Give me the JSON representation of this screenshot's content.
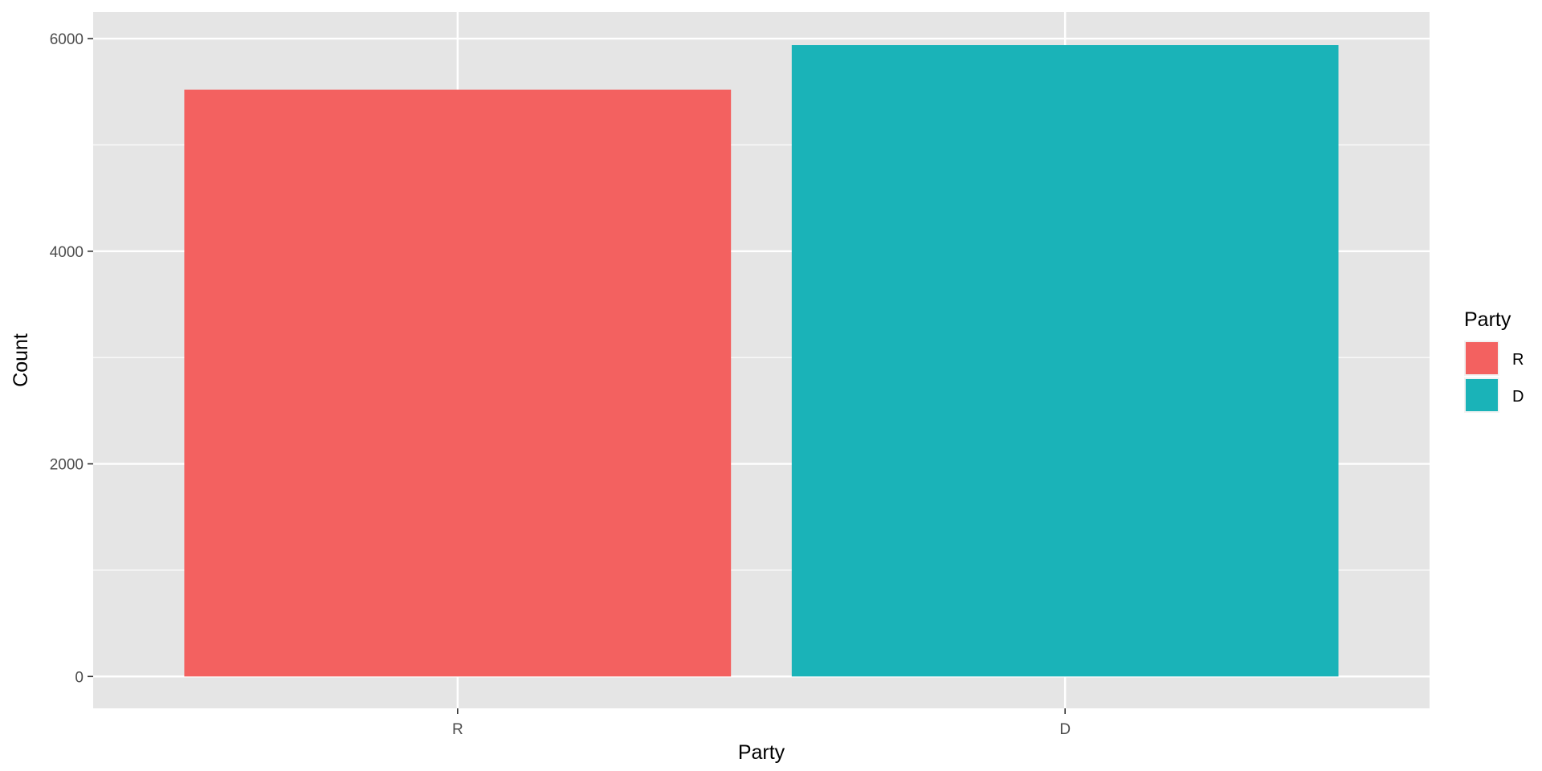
{
  "chart_data": {
    "type": "bar",
    "categories": [
      "R",
      "D"
    ],
    "values": [
      5520,
      5940
    ],
    "xlabel": "Party",
    "ylabel": "Count",
    "ylim": [
      -300,
      6250
    ],
    "y_ticks": [
      0,
      2000,
      4000,
      6000
    ],
    "y_tick_labels": [
      "0",
      "2000",
      "4000",
      "6000"
    ],
    "grid": true,
    "colors": {
      "R": "#F36160",
      "D": "#1AB3B8"
    },
    "legend": {
      "title": "Party",
      "placement": "right",
      "entries": [
        "R",
        "D"
      ]
    }
  }
}
